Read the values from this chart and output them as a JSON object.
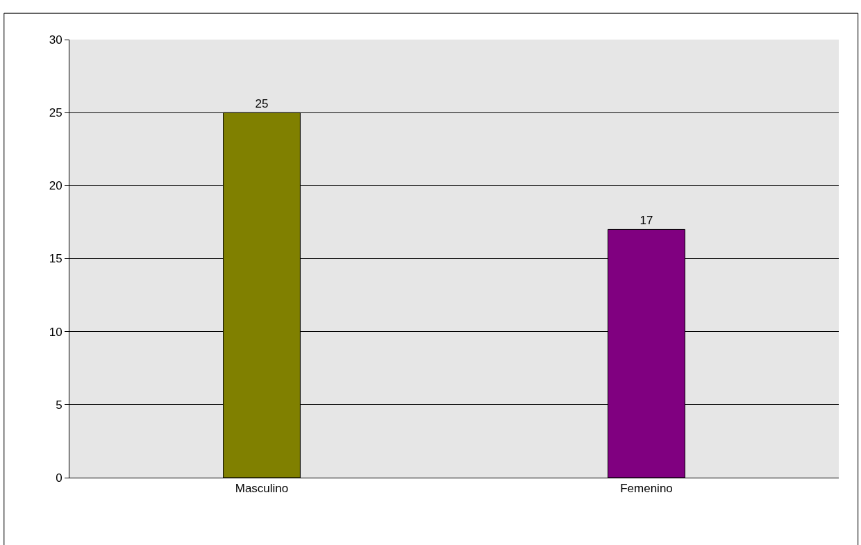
{
  "chart_data": {
    "type": "bar",
    "categories": [
      "Masculino",
      "Femenino"
    ],
    "values": [
      25,
      17
    ],
    "colors": [
      "#808000",
      "#800080"
    ],
    "ylim": [
      0,
      30
    ],
    "yticks": [
      0,
      5,
      10,
      15,
      20,
      25,
      30
    ],
    "grid": "y",
    "data_labels": true
  }
}
